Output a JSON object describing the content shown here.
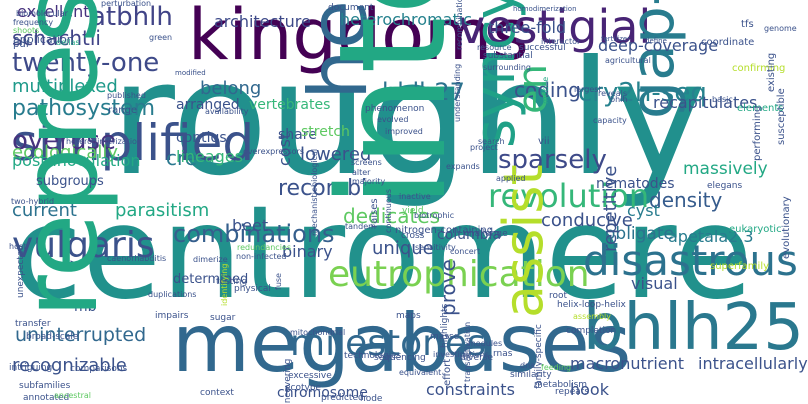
{
  "words": [
    {
      "text": "roughly",
      "color": "#21908d"
    },
    {
      "text": "centromere",
      "color": "#21918c"
    },
    {
      "text": "megabases",
      "color": "#31688e"
    },
    {
      "text": "kingdoms",
      "color": "#440154"
    },
    {
      "text": "bhlh25",
      "color": "#2a788e"
    },
    {
      "text": "vestigial",
      "color": "#482475"
    },
    {
      "text": "simplified",
      "color": "#3b528b"
    },
    {
      "text": "disastrous",
      "color": "#2c728e"
    },
    {
      "text": "eutrophication",
      "color": "#7ad151"
    },
    {
      "text": "milestones",
      "color": "#31688e"
    },
    {
      "text": "revolution",
      "color": "#35b779"
    },
    {
      "text": "vulgaris",
      "color": "#3b528b"
    },
    {
      "text": "overuse",
      "color": "#46337e"
    },
    {
      "text": "twenty-one",
      "color": "#3e4a89"
    },
    {
      "text": "atbhlh",
      "color": "#414487"
    },
    {
      "text": "bhlh27",
      "color": "#2c728e"
    },
    {
      "text": "cry2h-seq",
      "color": "#26828e"
    },
    {
      "text": "sparsely",
      "color": "#3e4a89"
    },
    {
      "text": "recombinase",
      "color": "#3b528b"
    },
    {
      "text": "combinations",
      "color": "#355f8d"
    },
    {
      "text": "uninterrupted",
      "color": "#31688e"
    },
    {
      "text": "dedicates",
      "color": "#5ec962"
    },
    {
      "text": "density",
      "color": "#365c8d"
    },
    {
      "text": "pathosystem",
      "color": "#287c8e"
    },
    {
      "text": "schachtii",
      "color": "#414487"
    },
    {
      "text": "multiplexed",
      "color": "#1f9a8a"
    },
    {
      "text": "heterodera",
      "color": "#31688e"
    },
    {
      "text": "syncytia",
      "color": "#1fa187"
    },
    {
      "text": "unique",
      "color": "#3b528b"
    },
    {
      "text": "assist",
      "color": "#b5de2b"
    },
    {
      "text": "parasitism",
      "color": "#22a884"
    },
    {
      "text": "current",
      "color": "#2c728e"
    },
    {
      "text": "conducive",
      "color": "#3b528b"
    },
    {
      "text": "lowered",
      "color": "#3b528b"
    },
    {
      "text": "coding",
      "color": "#3b528b"
    },
    {
      "text": "cre",
      "color": "#2a788e"
    },
    {
      "text": "en",
      "color": "#35b779"
    },
    {
      "text": "gap-free",
      "color": "#287c8e"
    },
    {
      "text": "deep-coverage",
      "color": "#3b528b"
    },
    {
      "text": "three-fold",
      "color": "#3b528b"
    },
    {
      "text": "ecologically",
      "color": "#5ec962"
    },
    {
      "text": "recognizable",
      "color": "#3b528b"
    },
    {
      "text": "belong",
      "color": "#31688e"
    },
    {
      "text": "arranged",
      "color": "#3b528b"
    },
    {
      "text": "heterochromatic",
      "color": "#26828e"
    },
    {
      "text": "architecture",
      "color": "#3e4a89"
    },
    {
      "text": "excellent",
      "color": "#46327e"
    },
    {
      "text": "massively",
      "color": "#22a884"
    },
    {
      "text": "obligate",
      "color": "#2c728e"
    },
    {
      "text": "recapitulates",
      "color": "#3b528b"
    },
    {
      "text": "post-inoculation",
      "color": "#22a884"
    },
    {
      "text": "lineages",
      "color": "#35b779"
    },
    {
      "text": "beet",
      "color": "#3b528b"
    },
    {
      "text": "cyst",
      "color": "#287c8e"
    },
    {
      "text": "binary",
      "color": "#3b528b"
    },
    {
      "text": "visual",
      "color": "#3b528b"
    },
    {
      "text": "repetitive",
      "color": "#3b528b"
    },
    {
      "text": "apetala2.3",
      "color": "#287c8e"
    },
    {
      "text": "macronutrient",
      "color": "#3b528b"
    },
    {
      "text": "intracellularly",
      "color": "#3b528b"
    },
    {
      "text": "constraints",
      "color": "#3b528b"
    },
    {
      "text": "hook",
      "color": "#3b528b"
    },
    {
      "text": "chromosome",
      "color": "#3b528b"
    },
    {
      "text": "mb",
      "color": "#3b528b"
    },
    {
      "text": "represents",
      "color": "#22a884"
    },
    {
      "text": "interpretation",
      "color": "#22a884"
    },
    {
      "text": "columbia",
      "color": "#3b528b"
    },
    {
      "text": "prove",
      "color": "#3b528b"
    },
    {
      "text": "share",
      "color": "#3b528b"
    },
    {
      "text": "cost",
      "color": "#3b528b"
    },
    {
      "text": "contigs",
      "color": "#3b528b"
    },
    {
      "text": "vertebrates",
      "color": "#35b779"
    },
    {
      "text": "stretch",
      "color": "#5ec962"
    },
    {
      "text": "determined",
      "color": "#3b528b"
    },
    {
      "text": "subgroups",
      "color": "#3b528b"
    },
    {
      "text": "nematodes",
      "color": "#3b528b"
    },
    {
      "text": "coordinate",
      "color": "#3b528b"
    },
    {
      "text": "tfs",
      "color": "#3b528b"
    },
    {
      "text": "vii",
      "color": "#3b528b"
    },
    {
      "text": "range",
      "color": "#3b528b"
    },
    {
      "text": "application",
      "color": "#3b528b"
    },
    {
      "text": "pdf",
      "color": "#3b528b"
    },
    {
      "text": "biomolecular",
      "color": "#3b528b"
    },
    {
      "text": "frequency",
      "color": "#3b528b"
    },
    {
      "text": "shoots",
      "color": "#5ec962"
    },
    {
      "text": "perturbation",
      "color": "#3b528b"
    },
    {
      "text": "document",
      "color": "#3b528b"
    },
    {
      "text": "homodimerization",
      "color": "#3b528b"
    },
    {
      "text": "genome",
      "color": "#3b528b"
    },
    {
      "text": "confirming",
      "color": "#b5de2b"
    },
    {
      "text": "published",
      "color": "#3b528b"
    },
    {
      "text": "modified",
      "color": "#3b528b"
    },
    {
      "text": "successful",
      "color": "#3b528b"
    },
    {
      "text": "agricultural",
      "color": "#3b528b"
    },
    {
      "text": "interactor",
      "color": "#3b528b"
    },
    {
      "text": "fertilizer",
      "color": "#3b528b"
    },
    {
      "text": "define",
      "color": "#3b528b"
    },
    {
      "text": "resource",
      "color": "#3b528b"
    },
    {
      "text": "largest",
      "color": "#3b528b"
    },
    {
      "text": "basic",
      "color": "#3b528b"
    },
    {
      "text": "elements",
      "color": "#22a884"
    },
    {
      "text": "existing",
      "color": "#3b528b"
    },
    {
      "text": "susceptible",
      "color": "#3b528b"
    },
    {
      "text": "performing",
      "color": "#3b528b"
    },
    {
      "text": "elegans",
      "color": "#3b528b"
    },
    {
      "text": "evolutionary",
      "color": "#3b528b"
    },
    {
      "text": "eukaryotic",
      "color": "#22a884"
    },
    {
      "text": "superfamily",
      "color": "#b5de2b"
    },
    {
      "text": "substantial",
      "color": "#3b528b"
    },
    {
      "text": "surrounding",
      "color": "#3b528b"
    },
    {
      "text": "understanding",
      "color": "#3b528b"
    },
    {
      "text": "recombination",
      "color": "#3b528b"
    },
    {
      "text": "phenomenon",
      "color": "#3b528b"
    },
    {
      "text": "improved",
      "color": "#3b528b"
    },
    {
      "text": "evolved",
      "color": "#3b528b"
    },
    {
      "text": "screens",
      "color": "#3b528b"
    },
    {
      "text": "alter",
      "color": "#3b528b"
    },
    {
      "text": "majority",
      "color": "#3b528b"
    },
    {
      "text": "biological",
      "color": "#3b528b"
    },
    {
      "text": "capacity",
      "color": "#3b528b"
    },
    {
      "text": "mobile",
      "color": "#22a884"
    },
    {
      "text": "project",
      "color": "#3b528b"
    },
    {
      "text": "applied",
      "color": "#3b528b"
    },
    {
      "text": "search",
      "color": "#3b528b"
    },
    {
      "text": "expands",
      "color": "#3b528b"
    },
    {
      "text": "inactive",
      "color": "#3b528b"
    },
    {
      "text": "yield",
      "color": "#5ec962"
    },
    {
      "text": "biotrophic",
      "color": "#3b528b"
    },
    {
      "text": "cross",
      "color": "#3b528b"
    },
    {
      "text": "challenge",
      "color": "#3b528b"
    },
    {
      "text": "nitrogen-containing",
      "color": "#3b528b"
    },
    {
      "text": "tandem",
      "color": "#3b528b"
    },
    {
      "text": "raises",
      "color": "#3b528b"
    },
    {
      "text": "continuous",
      "color": "#3b528b"
    },
    {
      "text": "mechanistic",
      "color": "#3b528b"
    },
    {
      "text": "redundancies",
      "color": "#5ec962"
    },
    {
      "text": "dimerize",
      "color": "#3b528b"
    },
    {
      "text": "overexpressors",
      "color": "#3b528b"
    },
    {
      "text": "availability",
      "color": "#3b528b"
    },
    {
      "text": "two-hybrid",
      "color": "#3b528b"
    },
    {
      "text": "heterodimerization",
      "color": "#3b528b"
    },
    {
      "text": "host",
      "color": "#3b528b"
    },
    {
      "text": "caenorhabditis",
      "color": "#3b528b"
    },
    {
      "text": "non-infected",
      "color": "#3b528b"
    },
    {
      "text": "sensitivity",
      "color": "#3b528b"
    },
    {
      "text": "concert",
      "color": "#3b528b"
    },
    {
      "text": "unexpected",
      "color": "#3b528b"
    },
    {
      "text": "transfer",
      "color": "#3b528b"
    },
    {
      "text": "broad-scale",
      "color": "#3b528b"
    },
    {
      "text": "intriguing",
      "color": "#3b528b"
    },
    {
      "text": "subfamilies",
      "color": "#3b528b"
    },
    {
      "text": "annotated",
      "color": "#3b528b"
    },
    {
      "text": "ancestral",
      "color": "#5ec962"
    },
    {
      "text": "comparisons",
      "color": "#3b528b"
    },
    {
      "text": "duplications",
      "color": "#3b528b"
    },
    {
      "text": "impairs",
      "color": "#3b528b"
    },
    {
      "text": "sugar",
      "color": "#3b528b"
    },
    {
      "text": "testing",
      "color": "#3b528b"
    },
    {
      "text": "physical",
      "color": "#3b528b"
    },
    {
      "text": "maps",
      "color": "#3b528b"
    },
    {
      "text": "masse",
      "color": "#3b528b"
    },
    {
      "text": "modules",
      "color": "#3b528b"
    },
    {
      "text": "technologies",
      "color": "#3b528b"
    },
    {
      "text": "sequencing",
      "color": "#3b528b"
    },
    {
      "text": "equivalent",
      "color": "#3b528b"
    },
    {
      "text": "transactivation",
      "color": "#3b528b"
    },
    {
      "text": "identifying",
      "color": "#b5de2b"
    },
    {
      "text": "fuse",
      "color": "#3b528b"
    },
    {
      "text": "mitochondrial",
      "color": "#3b528b"
    },
    {
      "text": "excessive",
      "color": "#3b528b"
    },
    {
      "text": "investigations",
      "color": "#3b528b"
    },
    {
      "text": "diverse",
      "color": "#3b528b"
    },
    {
      "text": "family-specific",
      "color": "#3b528b"
    },
    {
      "text": "rnas",
      "color": "#3b528b"
    },
    {
      "text": "root",
      "color": "#3b528b"
    },
    {
      "text": "assembly",
      "color": "#b5de2b"
    },
    {
      "text": "helix-loop-helix",
      "color": "#3b528b"
    },
    {
      "text": "completion",
      "color": "#3b528b"
    },
    {
      "text": "dna",
      "color": "#3b528b"
    },
    {
      "text": "metabolism",
      "color": "#3b528b"
    },
    {
      "text": "similarity",
      "color": "#3b528b"
    },
    {
      "text": "repeats",
      "color": "#3b528b"
    },
    {
      "text": "feeding",
      "color": "#5ec962"
    },
    {
      "text": "effort",
      "color": "#3b528b"
    },
    {
      "text": "highlights",
      "color": "#3b528b"
    },
    {
      "text": "predicted",
      "color": "#3b528b"
    },
    {
      "text": "uncovering",
      "color": "#3b528b"
    },
    {
      "text": "ecotype",
      "color": "#3b528b"
    },
    {
      "text": "context",
      "color": "#3b528b"
    },
    {
      "text": "node",
      "color": "#3b528b"
    },
    {
      "text": "dellas",
      "color": "#22a884"
    },
    {
      "text": "green",
      "color": "#3b528b"
    },
    {
      "text": "reveals",
      "color": "#3b528b"
    },
    {
      "text": "bhlh",
      "color": "#3b528b"
    }
  ]
}
